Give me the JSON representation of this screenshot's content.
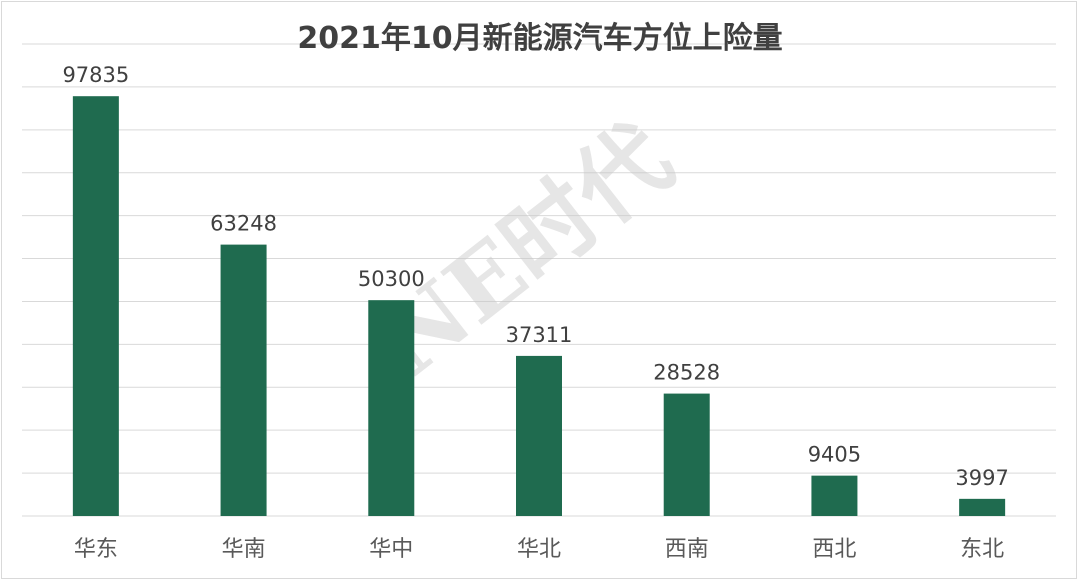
{
  "watermark": "NE时代",
  "chart_data": {
    "type": "bar",
    "title": "2021年10月新能源汽车方位上险量",
    "xlabel": "",
    "ylabel": "",
    "categories": [
      "华东",
      "华南",
      "华中",
      "华北",
      "西南",
      "西北",
      "东北"
    ],
    "values": [
      97835,
      63248,
      50300,
      37311,
      28528,
      9405,
      3997
    ],
    "ylim": [
      0,
      110000
    ],
    "y_gridline_step": 10000,
    "grid": true,
    "legend": "none",
    "bar_color": "#1f6b4f",
    "gridline_color": "#d9d9d9"
  }
}
